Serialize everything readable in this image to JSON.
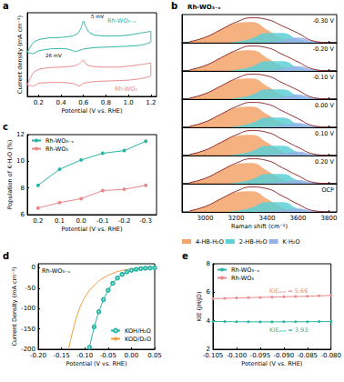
{
  "chart_data": [
    {
      "panel": "a",
      "type": "line",
      "xlabel": "Potential (V vs. RHE)",
      "ylabel": "Current density (mA cm⁻²)",
      "xlim": [
        0.1,
        1.25
      ],
      "xticks": [
        0.2,
        0.4,
        0.6,
        0.8,
        {
          "value": 1,
          "label": "1.0"
        },
        1.2
      ],
      "ylim": [
        -0.8,
        1
      ],
      "yticks": [],
      "tick_labels": "x",
      "grid": false,
      "annotations": [
        "26 mV",
        "5 mV"
      ],
      "series": [
        {
          "name": "Rh-WO₃₋ₓ",
          "color": "#2bb5a5",
          "marker": "none",
          "x": [
            0.1,
            0.15,
            0.2,
            0.3,
            0.4,
            0.5,
            0.55,
            0.58,
            0.6,
            0.62,
            0.65,
            0.7,
            0.8,
            0.9,
            1.0,
            1.1,
            1.2,
            1.2,
            1.1,
            1.0,
            0.9,
            0.8,
            0.7,
            0.6,
            0.55,
            0.53,
            0.5,
            0.45,
            0.4,
            0.3,
            0.2,
            0.15,
            0.1
          ],
          "values": [
            0.15,
            0.35,
            0.42,
            0.46,
            0.47,
            0.5,
            0.56,
            0.68,
            0.82,
            0.7,
            0.58,
            0.52,
            0.5,
            0.5,
            0.52,
            0.56,
            0.6,
            0.38,
            0.3,
            0.28,
            0.27,
            0.26,
            0.25,
            0.22,
            0.18,
            0.16,
            0.19,
            0.22,
            0.23,
            0.22,
            0.18,
            0.12,
            0.15
          ]
        },
        {
          "name": "Rh-WO₃",
          "color": "#e8888c",
          "marker": "none",
          "x": [
            0.1,
            0.15,
            0.2,
            0.3,
            0.4,
            0.5,
            0.55,
            0.58,
            0.6,
            0.62,
            0.65,
            0.7,
            0.8,
            0.9,
            1.0,
            1.1,
            1.2,
            1.2,
            1.1,
            1.0,
            0.9,
            0.8,
            0.7,
            0.6,
            0.56,
            0.53,
            0.5,
            0.4,
            0.3,
            0.2,
            0.15,
            0.1
          ],
          "values": [
            -0.55,
            -0.3,
            -0.22,
            -0.18,
            -0.17,
            -0.15,
            -0.12,
            -0.06,
            -0.02,
            -0.1,
            -0.14,
            -0.16,
            -0.17,
            -0.17,
            -0.15,
            -0.12,
            -0.08,
            -0.35,
            -0.42,
            -0.45,
            -0.46,
            -0.47,
            -0.48,
            -0.52,
            -0.58,
            -0.54,
            -0.52,
            -0.5,
            -0.5,
            -0.52,
            -0.58,
            -0.55
          ]
        }
      ]
    },
    {
      "panel": "b",
      "type": "area",
      "title": "Rh-WO₃₋ₓ",
      "xlabel": "Raman shift (cm⁻¹)",
      "x": [
        2900,
        3000,
        3100,
        3200,
        3300,
        3400,
        3500,
        3600,
        3700,
        3800
      ],
      "xlim": [
        2850,
        3850
      ],
      "xticks": [
        3000,
        3200,
        3400,
        3600,
        3800
      ],
      "ylim": [
        0,
        1.3
      ],
      "yticks": [],
      "tick_labels": "x",
      "grid": false,
      "legend": "bottom",
      "series": [
        {
          "name": "4-HB-H₂O",
          "color": "#f5a36b"
        },
        {
          "name": "2-HB-H₂O",
          "color": "#5cd0d6"
        },
        {
          "name": "K·H₂O",
          "color": "#93b3e6"
        }
      ],
      "spectra": [
        {
          "label": "-0.30 V",
          "components": [
            [
              0.05,
              0.25,
              0.6,
              0.9,
              0.95,
              0.6,
              0.2,
              0.05,
              0,
              0
            ],
            [
              0,
              0,
              0,
              0.05,
              0.2,
              0.45,
              0.45,
              0.15,
              0.02,
              0
            ],
            [
              0,
              0,
              0,
              0,
              0,
              0.02,
              0.12,
              0.24,
              0.06,
              0
            ]
          ],
          "envelope": [
            0.05,
            0.25,
            0.6,
            0.95,
            1.15,
            1.07,
            0.77,
            0.44,
            0.08,
            0
          ]
        },
        {
          "label": "-0.20 V",
          "components": [
            [
              0.05,
              0.25,
              0.6,
              0.9,
              0.95,
              0.6,
              0.2,
              0.05,
              0,
              0
            ],
            [
              0,
              0,
              0,
              0.05,
              0.2,
              0.45,
              0.45,
              0.15,
              0.02,
              0
            ],
            [
              0,
              0,
              0,
              0,
              0,
              0.02,
              0.11,
              0.22,
              0.06,
              0
            ]
          ],
          "envelope": [
            0.05,
            0.25,
            0.6,
            0.95,
            1.15,
            1.07,
            0.76,
            0.42,
            0.08,
            0
          ]
        },
        {
          "label": "-0.10 V",
          "components": [
            [
              0.05,
              0.25,
              0.6,
              0.9,
              0.95,
              0.6,
              0.2,
              0.05,
              0,
              0
            ],
            [
              0,
              0,
              0,
              0.05,
              0.2,
              0.45,
              0.45,
              0.15,
              0.02,
              0
            ],
            [
              0,
              0,
              0,
              0,
              0,
              0.02,
              0.1,
              0.21,
              0.05,
              0
            ]
          ],
          "envelope": [
            0.05,
            0.25,
            0.6,
            0.95,
            1.15,
            1.07,
            0.75,
            0.41,
            0.07,
            0
          ]
        },
        {
          "label": "0.00 V",
          "components": [
            [
              0.05,
              0.25,
              0.6,
              0.9,
              0.95,
              0.6,
              0.2,
              0.05,
              0,
              0
            ],
            [
              0,
              0,
              0,
              0.05,
              0.2,
              0.45,
              0.45,
              0.15,
              0.02,
              0
            ],
            [
              0,
              0,
              0,
              0,
              0,
              0.02,
              0.1,
              0.2,
              0.05,
              0
            ]
          ],
          "envelope": [
            0.05,
            0.25,
            0.6,
            0.95,
            1.15,
            1.07,
            0.75,
            0.4,
            0.07,
            0
          ]
        },
        {
          "label": "0.10 V",
          "components": [
            [
              0.05,
              0.25,
              0.6,
              0.9,
              0.95,
              0.6,
              0.2,
              0.05,
              0,
              0
            ],
            [
              0,
              0,
              0,
              0.05,
              0.2,
              0.45,
              0.45,
              0.15,
              0.02,
              0
            ],
            [
              0,
              0,
              0,
              0,
              0,
              0.02,
              0.09,
              0.18,
              0.05,
              0
            ]
          ],
          "envelope": [
            0.05,
            0.25,
            0.6,
            0.95,
            1.15,
            1.07,
            0.74,
            0.38,
            0.07,
            0
          ]
        },
        {
          "label": "0.20 V",
          "components": [
            [
              0.05,
              0.25,
              0.6,
              0.9,
              0.95,
              0.6,
              0.2,
              0.05,
              0,
              0
            ],
            [
              0,
              0,
              0,
              0.05,
              0.2,
              0.45,
              0.45,
              0.15,
              0.02,
              0
            ],
            [
              0,
              0,
              0,
              0,
              0,
              0.02,
              0.08,
              0.17,
              0.04,
              0
            ]
          ],
          "envelope": [
            0.05,
            0.25,
            0.6,
            0.95,
            1.15,
            1.07,
            0.73,
            0.37,
            0.06,
            0
          ]
        },
        {
          "label": "OCP",
          "components": [
            [
              0.05,
              0.25,
              0.6,
              0.9,
              0.95,
              0.6,
              0.2,
              0.05,
              0,
              0
            ],
            [
              0,
              0,
              0,
              0.05,
              0.2,
              0.45,
              0.45,
              0.15,
              0.02,
              0
            ],
            [
              0,
              0,
              0,
              0,
              0,
              0.02,
              0.08,
              0.16,
              0.04,
              0
            ]
          ],
          "envelope": [
            0.05,
            0.25,
            0.6,
            0.95,
            1.15,
            1.07,
            0.73,
            0.36,
            0.06,
            0
          ]
        }
      ]
    },
    {
      "panel": "c",
      "type": "line",
      "xlabel": "Potential (V vs. RHE)",
      "ylabel": "Population of K·H₂O (%)",
      "categories": [
        "0.2",
        "0.1",
        "0.0",
        "-0.1",
        "-0.2",
        "-0.3"
      ],
      "ylim": [
        6,
        12
      ],
      "yticks": [
        6,
        8,
        10,
        12
      ],
      "grid": false,
      "legend": "top-left",
      "marker": "circle",
      "series": [
        {
          "name": "Rh-WO₃₋ₓ",
          "color": "#2bb5a5",
          "values": [
            8.2,
            9.4,
            10.1,
            10.6,
            10.8,
            11.5
          ]
        },
        {
          "name": "Rh-WO₃",
          "color": "#e8888c",
          "values": [
            6.5,
            6.9,
            7.2,
            7.8,
            7.9,
            8.2
          ]
        }
      ]
    },
    {
      "panel": "d",
      "type": "line",
      "title": "Rh-WO₃₋ₓ",
      "xlabel": "Potential (V vs. RHE)",
      "ylabel": "Current Density (mA cm⁻²)",
      "xlim": [
        -0.2,
        0.05
      ],
      "xticks": [
        {
          "value": -0.2,
          "label": "-0.20"
        },
        -0.15,
        {
          "value": -0.1,
          "label": "-0.10"
        },
        -0.05,
        {
          "value": 0,
          "label": "0.00"
        },
        0.05
      ],
      "ylim": [
        -200,
        10
      ],
      "yticks": [
        -200,
        -150,
        -100,
        -50,
        0
      ],
      "grid": false,
      "legend": "bottom-right",
      "series": [
        {
          "name": "KOH/H₂O",
          "color": "#2bb5a5",
          "marker": "circle",
          "x": [
            0.05,
            0.04,
            0.03,
            0.02,
            0.01,
            0,
            -0.01,
            -0.02,
            -0.03,
            -0.04,
            -0.05,
            -0.06,
            -0.07,
            -0.08,
            -0.09
          ],
          "values": [
            0,
            -0.5,
            -1,
            -2,
            -3.5,
            -6,
            -10,
            -16,
            -25,
            -38,
            -55,
            -78,
            -108,
            -145,
            -195
          ]
        },
        {
          "name": "KOD/D₂O",
          "color": "#f0a040",
          "marker": "none",
          "x": [
            0.05,
            0.03,
            0.01,
            -0.01,
            -0.03,
            -0.05,
            -0.07,
            -0.09,
            -0.1,
            -0.11,
            -0.12,
            -0.13,
            -0.135
          ],
          "values": [
            0,
            -0.5,
            -1.5,
            -4,
            -9,
            -18,
            -32,
            -55,
            -72,
            -95,
            -128,
            -175,
            -200
          ]
        }
      ]
    },
    {
      "panel": "e",
      "type": "line",
      "xlabel": "Potential (V vs. RHE)",
      "ylabel": "KIE (jH/jD)",
      "xlim": [
        -0.105,
        -0.08
      ],
      "xticks": [
        -0.105,
        {
          "value": -0.1,
          "label": "-0.100"
        },
        -0.095,
        {
          "value": -0.09,
          "label": "-0.090"
        },
        -0.085,
        {
          "value": -0.08,
          "label": "-0.080"
        }
      ],
      "ylim": [
        2,
        8
      ],
      "yticks": [
        2,
        4,
        6,
        8
      ],
      "grid": false,
      "legend": "top-left",
      "marker": "circle",
      "annotations": [
        "KIEₐᵥₑ = 5.66",
        "KIEₐᵥₑ = 3.93"
      ],
      "series": [
        {
          "name": "Rh-WO₃₋ₓ",
          "color": "#2bb5a5",
          "x": [
            -0.105,
            -0.1025,
            -0.1,
            -0.0975,
            -0.095,
            -0.0925,
            -0.09,
            -0.0875,
            -0.085,
            -0.0825,
            -0.08
          ],
          "values": [
            3.95,
            3.94,
            3.93,
            3.93,
            3.92,
            3.92,
            3.93,
            3.93,
            3.93,
            3.94,
            3.94
          ]
        },
        {
          "name": "Rh-WO₃",
          "color": "#e8888c",
          "x": [
            -0.105,
            -0.1025,
            -0.1,
            -0.0975,
            -0.095,
            -0.0925,
            -0.09,
            -0.0875,
            -0.085,
            -0.0825,
            -0.08
          ],
          "values": [
            5.55,
            5.57,
            5.6,
            5.62,
            5.64,
            5.66,
            5.68,
            5.7,
            5.72,
            5.75,
            5.78
          ]
        }
      ]
    }
  ]
}
